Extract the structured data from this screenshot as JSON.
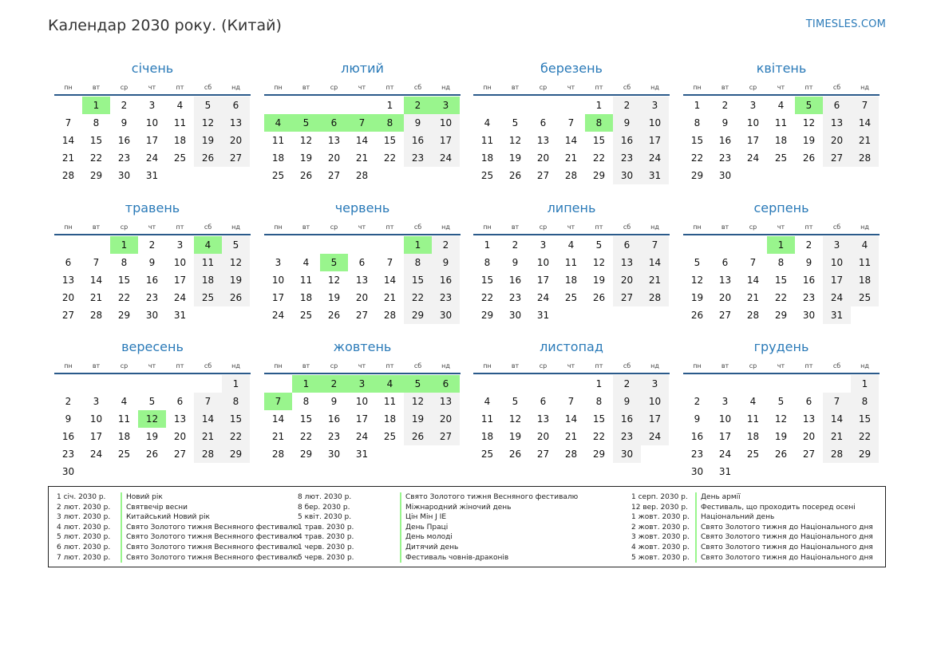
{
  "page": {
    "title": "Календар 2030 року. (Китай)",
    "site": "TIMESLES.COM"
  },
  "weekday_labels": [
    "пн",
    "вт",
    "ср",
    "чт",
    "пт",
    "сб",
    "нд"
  ],
  "colors": {
    "accent": "#2a7ab8",
    "holiday": "#99f58d",
    "weekend": "#f2f2f2",
    "rule": "#2a5a8a"
  },
  "months": [
    {
      "name": "січень",
      "start": 1,
      "days": 31,
      "holidays": [
        1
      ]
    },
    {
      "name": "лютий",
      "start": 4,
      "days": 28,
      "holidays": [
        2,
        3,
        4,
        5,
        6,
        7,
        8
      ]
    },
    {
      "name": "березень",
      "start": 4,
      "days": 31,
      "holidays": [
        8
      ]
    },
    {
      "name": "квітень",
      "start": 0,
      "days": 30,
      "holidays": [
        5
      ]
    },
    {
      "name": "травень",
      "start": 2,
      "days": 31,
      "holidays": [
        1,
        4
      ]
    },
    {
      "name": "червень",
      "start": 5,
      "days": 30,
      "holidays": [
        1,
        5
      ]
    },
    {
      "name": "липень",
      "start": 0,
      "days": 31,
      "holidays": []
    },
    {
      "name": "серпень",
      "start": 3,
      "days": 31,
      "holidays": [
        1
      ]
    },
    {
      "name": "вересень",
      "start": 6,
      "days": 30,
      "holidays": [
        12
      ]
    },
    {
      "name": "жовтень",
      "start": 1,
      "days": 31,
      "holidays": [
        1,
        2,
        3,
        4,
        5,
        6,
        7
      ]
    },
    {
      "name": "листопад",
      "start": 4,
      "days": 30,
      "holidays": []
    },
    {
      "name": "грудень",
      "start": 6,
      "days": 31,
      "holidays": []
    }
  ],
  "legend": [
    [
      {
        "date": "1 січ. 2030 р.",
        "name": "Новий рік"
      },
      {
        "date": "2 лют. 2030 р.",
        "name": "Святвечір весни"
      },
      {
        "date": "3 лют. 2030 р.",
        "name": "Китайський Новий рік"
      },
      {
        "date": "4 лют. 2030 р.",
        "name": "Свято Золотого тижня Весняного фестивалю"
      },
      {
        "date": "5 лют. 2030 р.",
        "name": "Свято Золотого тижня Весняного фестивалю"
      },
      {
        "date": "6 лют. 2030 р.",
        "name": "Свято Золотого тижня Весняного фестивалю"
      },
      {
        "date": "7 лют. 2030 р.",
        "name": "Свято Золотого тижня Весняного фестивалю"
      }
    ],
    [
      {
        "date": "8 лют. 2030 р.",
        "name": "Свято Золотого тижня Весняного фестивалю"
      },
      {
        "date": "8 бер. 2030 р.",
        "name": "Міжнародний жіночий день"
      },
      {
        "date": "5 квіт. 2030 р.",
        "name": "Цін Мін Ј ІЕ"
      },
      {
        "date": "1 трав. 2030 р.",
        "name": "День Праці"
      },
      {
        "date": "4 трав. 2030 р.",
        "name": "День молоді"
      },
      {
        "date": "1 черв. 2030 р.",
        "name": "Дитячий день"
      },
      {
        "date": "5 черв. 2030 р.",
        "name": "Фестиваль човнів-драконів"
      }
    ],
    [
      {
        "date": "1 серп. 2030 р.",
        "name": "День армії"
      },
      {
        "date": "12 вер. 2030 р.",
        "name": "Фестиваль, що проходить посеред осені"
      },
      {
        "date": "1 жовт. 2030 р.",
        "name": "Національний день"
      },
      {
        "date": "2 жовт. 2030 р.",
        "name": "Свято Золотого тижня до Національного дня"
      },
      {
        "date": "3 жовт. 2030 р.",
        "name": "Свято Золотого тижня до Національного дня"
      },
      {
        "date": "4 жовт. 2030 р.",
        "name": "Свято Золотого тижня до Національного дня"
      },
      {
        "date": "5 жовт. 2030 р.",
        "name": "Свято Золотого тижня до Національного дня"
      }
    ]
  ]
}
